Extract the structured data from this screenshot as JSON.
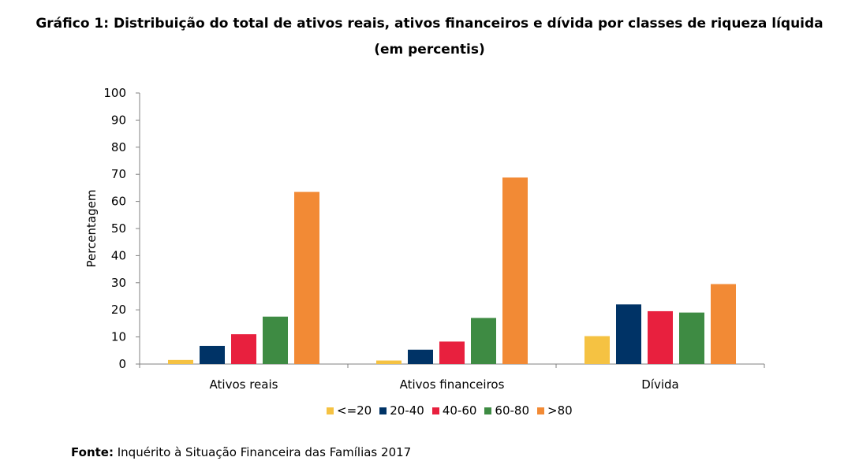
{
  "title": {
    "line1": "Gráfico 1: Distribuição do total de ativos reais, ativos financeiros e dívida por classes de riqueza líquida",
    "line2": "(em percentis)"
  },
  "source": {
    "label": "Fonte:",
    "text": "Inquérito à Situação Financeira das Famílias 2017"
  },
  "chart_data": {
    "type": "bar",
    "title": "Gráfico 1: Distribuição do total de ativos reais, ativos financeiros e dívida por classes de riqueza líquida (em percentis)",
    "ylabel": "Percentagem",
    "xlabel": "",
    "categories": [
      "Ativos reais",
      "Ativos financeiros",
      "Dívida"
    ],
    "ylim": [
      0,
      100
    ],
    "yticks": [
      0,
      10,
      20,
      30,
      40,
      50,
      60,
      70,
      80,
      90,
      100
    ],
    "grid": false,
    "legend_position": "bottom",
    "series": [
      {
        "name": "<=20",
        "color": "#F5C242",
        "values": [
          1.5,
          1.3,
          10.3
        ]
      },
      {
        "name": "20-40",
        "color": "#003366",
        "values": [
          6.7,
          5.3,
          22.0
        ]
      },
      {
        "name": "40-60",
        "color": "#E8203E",
        "values": [
          11.0,
          8.3,
          19.5
        ]
      },
      {
        "name": "60-80",
        "color": "#3E8B43",
        "values": [
          17.5,
          17.0,
          19.0
        ]
      },
      {
        "name": ">80",
        "color": "#F28A35",
        "values": [
          63.5,
          68.8,
          29.5
        ]
      }
    ]
  }
}
